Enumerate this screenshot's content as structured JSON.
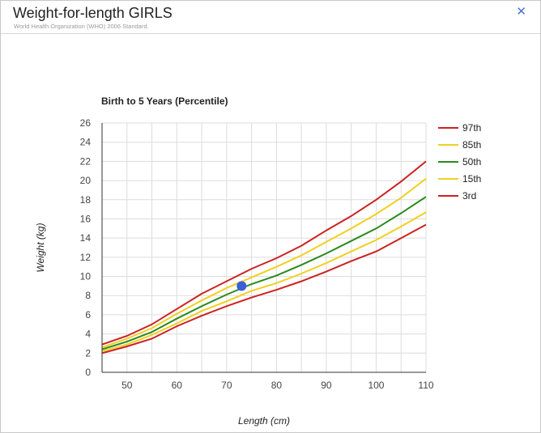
{
  "dialog": {
    "title": "Weight-for-length GIRLS",
    "subtitle": "World Health Organization (WHO) 2006 Standard.",
    "close_icon": "close-icon"
  },
  "chart_data": {
    "type": "line",
    "title": "Birth to 5 Years (Percentile)",
    "xlabel": "Length (cm)",
    "ylabel": "Weight (kg)",
    "xlim": [
      45,
      110
    ],
    "ylim": [
      0,
      26
    ],
    "xticks": [
      50,
      60,
      70,
      80,
      90,
      100,
      110
    ],
    "yticks": [
      0,
      2,
      4,
      6,
      8,
      10,
      12,
      14,
      16,
      18,
      20,
      22,
      24,
      26
    ],
    "grid": true,
    "legend_position": "right",
    "x": [
      45,
      50,
      55,
      60,
      65,
      70,
      75,
      80,
      85,
      90,
      95,
      100,
      105,
      110
    ],
    "series": [
      {
        "name": "97th",
        "color": "#cc2222",
        "values": [
          2.9,
          3.8,
          5.0,
          6.6,
          8.2,
          9.5,
          10.8,
          11.9,
          13.2,
          14.8,
          16.3,
          18.0,
          19.9,
          22.0
        ]
      },
      {
        "name": "85th",
        "color": "#f0d020",
        "values": [
          2.6,
          3.5,
          4.6,
          6.1,
          7.5,
          8.8,
          9.9,
          11.0,
          12.2,
          13.6,
          15.0,
          16.5,
          18.2,
          20.2
        ]
      },
      {
        "name": "50th",
        "color": "#2a8a1e",
        "values": [
          2.4,
          3.2,
          4.2,
          5.6,
          6.9,
          8.1,
          9.2,
          10.1,
          11.2,
          12.4,
          13.7,
          15.0,
          16.6,
          18.3
        ]
      },
      {
        "name": "15th",
        "color": "#f0d020",
        "values": [
          2.2,
          2.9,
          3.9,
          5.1,
          6.4,
          7.4,
          8.5,
          9.3,
          10.3,
          11.4,
          12.6,
          13.8,
          15.2,
          16.7
        ]
      },
      {
        "name": "3rd",
        "color": "#cc2222",
        "values": [
          2.0,
          2.7,
          3.5,
          4.8,
          5.9,
          6.9,
          7.8,
          8.6,
          9.5,
          10.5,
          11.6,
          12.6,
          14.0,
          15.4
        ]
      }
    ],
    "marker": {
      "x": 73,
      "y": 9.0,
      "color": "#3b5fd6"
    }
  }
}
